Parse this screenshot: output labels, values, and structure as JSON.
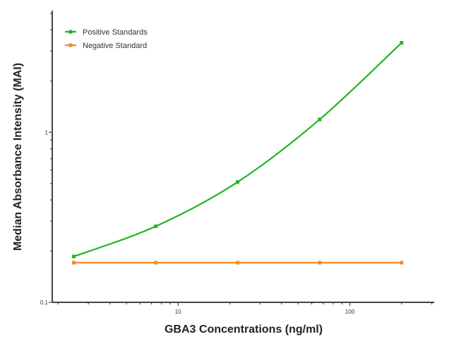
{
  "chart_data": {
    "type": "line",
    "title": "",
    "xlabel": "GBA3 Concentrations (ng/ml)",
    "ylabel": "Median Absorbance Intensity (MAI)",
    "x_scale": "log",
    "y_scale": "log",
    "xlim": [
      1.85,
      310
    ],
    "ylim": [
      0.1,
      5
    ],
    "x_ticks": [
      {
        "value": 10,
        "label": "10"
      },
      {
        "value": 100,
        "label": "100"
      }
    ],
    "y_ticks": [
      {
        "value": 0.1,
        "label": "0.1"
      },
      {
        "value": 1,
        "label": "1"
      }
    ],
    "grid": false,
    "legend_position": "top-left",
    "series": [
      {
        "name": "Positive Standards",
        "color": "#22b422",
        "x": [
          2.47,
          7.41,
          22.2,
          66.7,
          200
        ],
        "y": [
          0.186,
          0.28,
          0.51,
          1.19,
          3.36
        ]
      },
      {
        "name": "Negative Standard",
        "color": "#f08a24",
        "x": [
          2.47,
          7.41,
          22.2,
          66.7,
          200
        ],
        "y": [
          0.171,
          0.171,
          0.171,
          0.171,
          0.171
        ]
      }
    ]
  }
}
